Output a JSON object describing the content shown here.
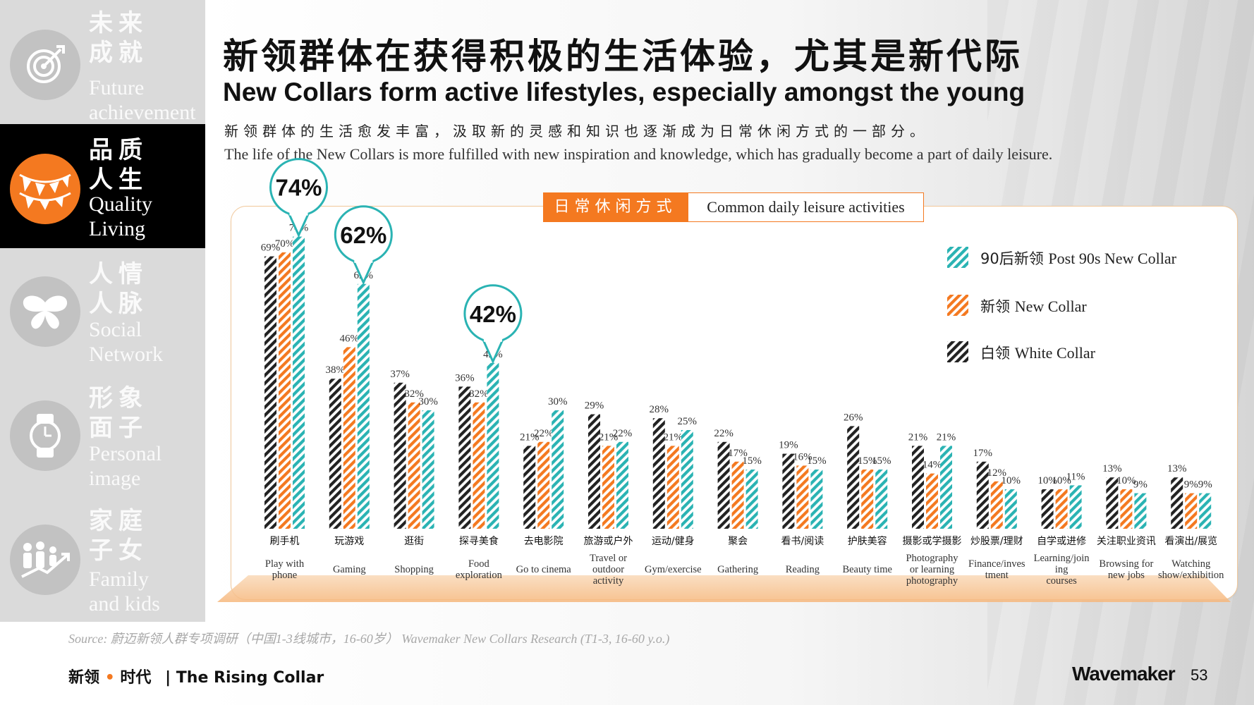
{
  "sidebar": {
    "sections": [
      {
        "zh": "未来成就",
        "en": "Future achievement",
        "icon": "target-icon",
        "active": false
      },
      {
        "zh": "品质人生",
        "en": "Quality Living",
        "icon": "bunting-icon",
        "active": true
      },
      {
        "zh": "人情人脉",
        "en": "Social Network",
        "icon": "butterfly-icon",
        "active": false
      },
      {
        "zh": "形象面子",
        "en": "Personal image",
        "icon": "watch-icon",
        "active": false
      },
      {
        "zh": "家庭子女",
        "en": "Family and kids",
        "icon": "family-icon",
        "active": false
      }
    ]
  },
  "title": {
    "zh": "新领群体在获得积极的生活体验，尤其是新代际",
    "en": "New Collars form active lifestyles, especially amongst the young"
  },
  "subtitle": {
    "zh": "新领群体的生活愈发丰富，汲取新的灵感和知识也逐渐成为日常休闲方式的一部分。",
    "en": "The life of the New Collars is more fulfilled with new inspiration and knowledge, which has gradually become a part of daily leisure."
  },
  "chart_tag": {
    "zh": "日常休闲方式",
    "en": "Common daily leisure activities"
  },
  "colors": {
    "white_collar": "#222222",
    "new_collar": "#f47920",
    "post90": "#2ab3b3",
    "accent": "#f47920"
  },
  "chart_data": {
    "type": "bar",
    "title": "Common daily leisure activities",
    "categories_zh": [
      "刷手机",
      "玩游戏",
      "逛街",
      "探寻美食",
      "去电影院",
      "旅游或户外",
      "运动/健身",
      "聚会",
      "看书/阅读",
      "护肤美容",
      "摄影或学摄影",
      "炒股票/理财",
      "自学或进修",
      "关注职业资讯",
      "看演出/展览"
    ],
    "categories": [
      "Play with phone",
      "Gaming",
      "Shopping",
      "Food exploration",
      "Go to cinema",
      "Travel or outdoor activity",
      "Gym/exercise",
      "Gathering",
      "Reading",
      "Beauty time",
      "Photography or learning photography",
      "Finance/investment",
      "Learning/joining courses",
      "Browsing for new jobs",
      "Watching show/exhibition"
    ],
    "series": [
      {
        "name": "白领 White Collar",
        "values": [
          69,
          38,
          37,
          36,
          21,
          29,
          28,
          22,
          19,
          26,
          21,
          17,
          10,
          13,
          13
        ]
      },
      {
        "name": "新领 New Collar",
        "values": [
          70,
          46,
          32,
          32,
          22,
          21,
          21,
          17,
          16,
          15,
          14,
          12,
          10,
          10,
          9
        ]
      },
      {
        "name": "90后新领 Post 90s New Collar",
        "values": [
          74,
          62,
          30,
          42,
          30,
          22,
          25,
          15,
          15,
          15,
          21,
          10,
          11,
          9,
          9
        ]
      }
    ],
    "callouts": [
      {
        "category": "Play with phone",
        "series": "90后新领 Post 90s New Collar",
        "label": "74%"
      },
      {
        "category": "Gaming",
        "series": "90后新领 Post 90s New Collar",
        "label": "62%"
      },
      {
        "category": "Food exploration",
        "series": "90后新领 Post 90s New Collar",
        "label": "42%"
      }
    ],
    "legend": [
      {
        "zh": "90后新领",
        "en": "Post 90s New Collar"
      },
      {
        "zh": "新领",
        "en": "New Collar"
      },
      {
        "zh": "白领",
        "en": "White Collar"
      }
    ],
    "legend_position": "top-right",
    "ylim": [
      0,
      80
    ],
    "grid": false
  },
  "source": "Source: 蔚迈新领人群专项调研（中国1-3线城市，16-60岁） Wavemaker New Collars Research (T1-3, 16-60 y.o.)",
  "footer": {
    "left_a": "新领",
    "dot": "•",
    "left_b": "时代",
    "sep": "| The Rising Collar",
    "brand": "Wavemaker",
    "page": "53"
  }
}
